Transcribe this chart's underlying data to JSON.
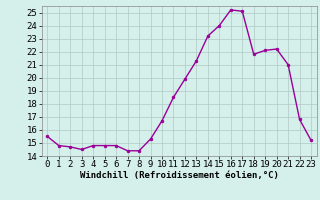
{
  "x": [
    0,
    1,
    2,
    3,
    4,
    5,
    6,
    7,
    8,
    9,
    10,
    11,
    12,
    13,
    14,
    15,
    16,
    17,
    18,
    19,
    20,
    21,
    22,
    23
  ],
  "y": [
    15.5,
    14.8,
    14.7,
    14.5,
    14.8,
    14.8,
    14.8,
    14.4,
    14.4,
    15.3,
    16.7,
    18.5,
    19.9,
    21.3,
    23.2,
    24.0,
    25.2,
    25.1,
    21.8,
    22.1,
    22.2,
    21.0,
    16.8,
    15.2
  ],
  "line_color": "#990099",
  "marker": "o",
  "marker_size": 2.0,
  "bg_color": "#d5f0eb",
  "grid_color": "#b0c8c4",
  "xlabel": "Windchill (Refroidissement éolien,°C)",
  "ylim": [
    14,
    25.5
  ],
  "xlim": [
    -0.5,
    23.5
  ],
  "yticks": [
    14,
    15,
    16,
    17,
    18,
    19,
    20,
    21,
    22,
    23,
    24,
    25
  ],
  "xticks": [
    0,
    1,
    2,
    3,
    4,
    5,
    6,
    7,
    8,
    9,
    10,
    11,
    12,
    13,
    14,
    15,
    16,
    17,
    18,
    19,
    20,
    21,
    22,
    23
  ],
  "xlabel_fontsize": 6.5,
  "tick_fontsize": 6.5,
  "line_width": 1.0
}
